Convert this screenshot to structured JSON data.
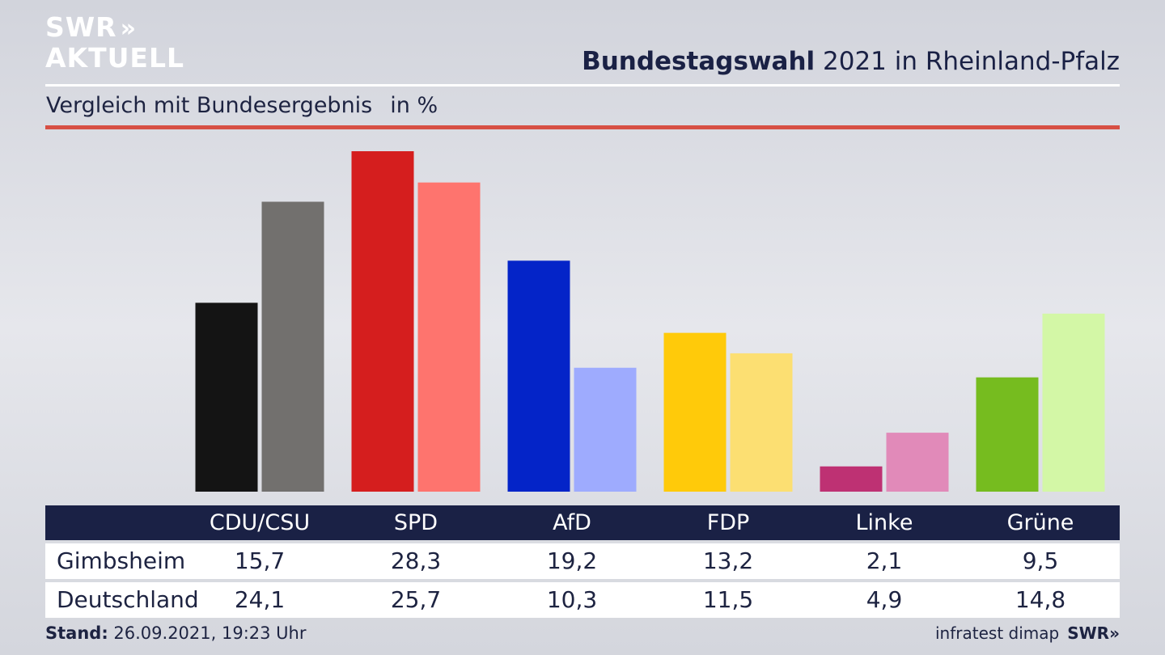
{
  "brand": {
    "logo_line1": "SWR",
    "logo_chevrons": "»",
    "logo_line2": "AKTUELL"
  },
  "header": {
    "title_bold": "Bundestagswahl",
    "title_rest": " 2021 in Rheinland-Pfalz",
    "subtitle": "Vergleich mit Bundesergebnis",
    "unit": "in %"
  },
  "chart_data": {
    "type": "bar",
    "categories": [
      "CDU/CSU",
      "SPD",
      "AfD",
      "FDP",
      "Linke",
      "Grüne"
    ],
    "series": [
      {
        "name": "Gimbsheim",
        "values": [
          15.7,
          28.3,
          19.2,
          13.2,
          2.1,
          9.5
        ],
        "colors": [
          "#141414",
          "#d51e1e",
          "#0424c8",
          "#ffca0a",
          "#be3173",
          "#76bc1f"
        ]
      },
      {
        "name": "Deutschland",
        "values": [
          24.1,
          25.7,
          10.3,
          11.5,
          4.9,
          14.8
        ],
        "colors": [
          "#72706e",
          "#fe746e",
          "#9eabfe",
          "#fcdf72",
          "#e18ab9",
          "#d3f7a6"
        ]
      }
    ],
    "value_labels": {
      "Gimbsheim": [
        "15,7",
        "28,3",
        "19,2",
        "13,2",
        "2,1",
        "9,5"
      ],
      "Deutschland": [
        "24,1",
        "25,7",
        "10,3",
        "11,5",
        "4,9",
        "14,8"
      ]
    },
    "ylim": [
      0,
      28.3
    ],
    "grid": false,
    "legend": "table below chart"
  },
  "footer": {
    "stand_label": "Stand:",
    "stand_value": " 26.09.2021, 19:23 Uhr",
    "source": "infratest dimap",
    "source_logo": "SWR»"
  },
  "colors": {
    "navy": "#1a2145",
    "accent_red": "#d74f44",
    "white": "#ffffff"
  }
}
